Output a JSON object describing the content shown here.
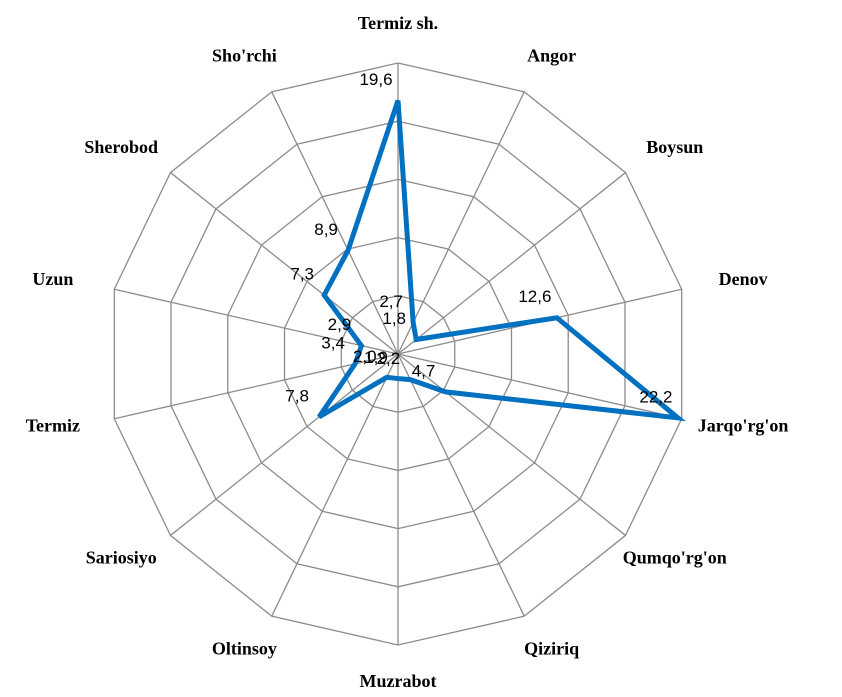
{
  "chart_data": {
    "type": "radar",
    "categories": [
      "Termiz sh.",
      "Angor",
      "Boysun",
      "Denov",
      "Jarqo'rg'on",
      "Qumqo'rg'on",
      "Qiziriq",
      "Muzrabot",
      "Oltinsoy",
      "Sariosiyo",
      "Termiz",
      "Uzun",
      "Sherobod",
      "Sho'rchi"
    ],
    "values": [
      19.6,
      2.7,
      1.8,
      12.6,
      22.2,
      4.7,
      2.2,
      1.9,
      2.0,
      7.8,
      3.4,
      2.9,
      7.3,
      8.9
    ],
    "value_labels": [
      "19,6",
      "2,7",
      "1,8",
      "12,6",
      "22,2",
      "4,7",
      "2,2",
      "1,9",
      "2,0",
      "7,8",
      "3,4",
      "2,9",
      "7,3",
      "8,9"
    ],
    "color": "#0070c0",
    "ylim": [
      0,
      22.5
    ],
    "yticks": [
      4.5,
      9,
      13.5,
      18,
      22.5
    ],
    "grid": true
  }
}
